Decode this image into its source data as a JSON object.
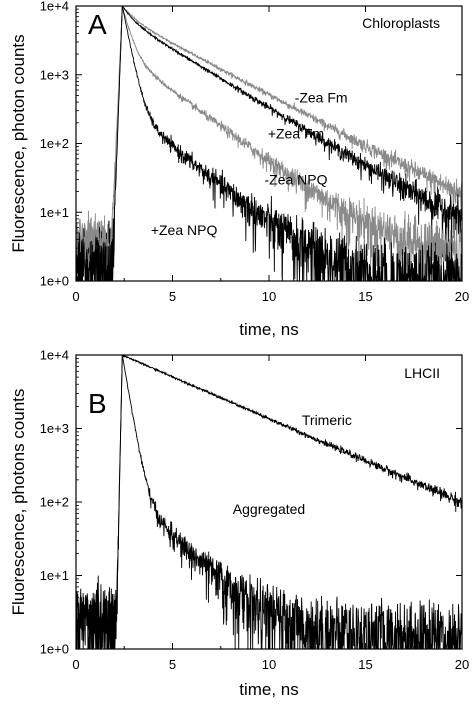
{
  "chart_data": [
    {
      "type": "line",
      "panel": "A",
      "annotation_top_right": "Chloroplasts",
      "xlabel": "time, ns",
      "ylabel": "Fluorescence, photon counts",
      "xlim": [
        0,
        20
      ],
      "ylim": [
        1,
        10000
      ],
      "yscale": "log",
      "x_ticks": [
        "0",
        "5",
        "10",
        "15",
        "20"
      ],
      "y_ticks": [
        "1e+0",
        "1e+1",
        "1e+2",
        "1e+3",
        "1e+4"
      ],
      "peak_x": 2.4,
      "series": [
        {
          "name": "-Zea Fm",
          "color": "#8a8a8a",
          "rise_start": 1.85,
          "tau_fast": 0.55,
          "tau_slow": 2.9,
          "amp_fast": 0.3,
          "background": 4.0,
          "label_x": 12.7,
          "label_y": 470,
          "anchor": "middle"
        },
        {
          "name": "+Zea Fm",
          "color": "#000000",
          "rise_start": 1.9,
          "tau_fast": 0.5,
          "tau_slow": 2.55,
          "amp_fast": 0.35,
          "background": 3.0,
          "label_x": 11.4,
          "label_y": 140,
          "anchor": "middle"
        },
        {
          "name": "-Zea NPQ",
          "color": "#8a8a8a",
          "rise_start": 1.9,
          "tau_fast": 0.35,
          "tau_slow": 2.1,
          "amp_fast": 0.8,
          "background": 4.0,
          "label_x": 11.4,
          "label_y": 30,
          "anchor": "middle"
        },
        {
          "name": "+Zea NPQ",
          "color": "#000000",
          "rise_start": 1.9,
          "tau_fast": 0.3,
          "tau_slow": 1.9,
          "amp_fast": 0.965,
          "background": 1.5,
          "label_x": 5.6,
          "label_y": 5.5,
          "anchor": "middle"
        }
      ]
    },
    {
      "type": "line",
      "panel": "B",
      "annotation_top_right": "LHCII",
      "xlabel": "time, ns",
      "ylabel": "Fluorescence, photons counts",
      "xlim": [
        0,
        20
      ],
      "ylim": [
        1,
        10000
      ],
      "yscale": "log",
      "x_ticks": [
        "0",
        "5",
        "10",
        "15",
        "20"
      ],
      "y_ticks": [
        "1e+0",
        "1e+1",
        "1e+2",
        "1e+3",
        "1e+4"
      ],
      "peak_x": 2.4,
      "series": [
        {
          "name": "Trimeric",
          "color": "#000000",
          "rise_start": 2.1,
          "tau_fast": 0.5,
          "tau_slow": 3.8,
          "amp_fast": 0.0,
          "background": 3.0,
          "label_x": 13.0,
          "label_y": 1300,
          "anchor": "middle"
        },
        {
          "name": "Aggregated",
          "color": "#000000",
          "rise_start": 2.1,
          "tau_fast": 0.28,
          "tau_slow": 1.7,
          "amp_fast": 0.985,
          "background": 2.5,
          "label_x": 10.0,
          "label_y": 80,
          "anchor": "middle"
        }
      ]
    }
  ]
}
